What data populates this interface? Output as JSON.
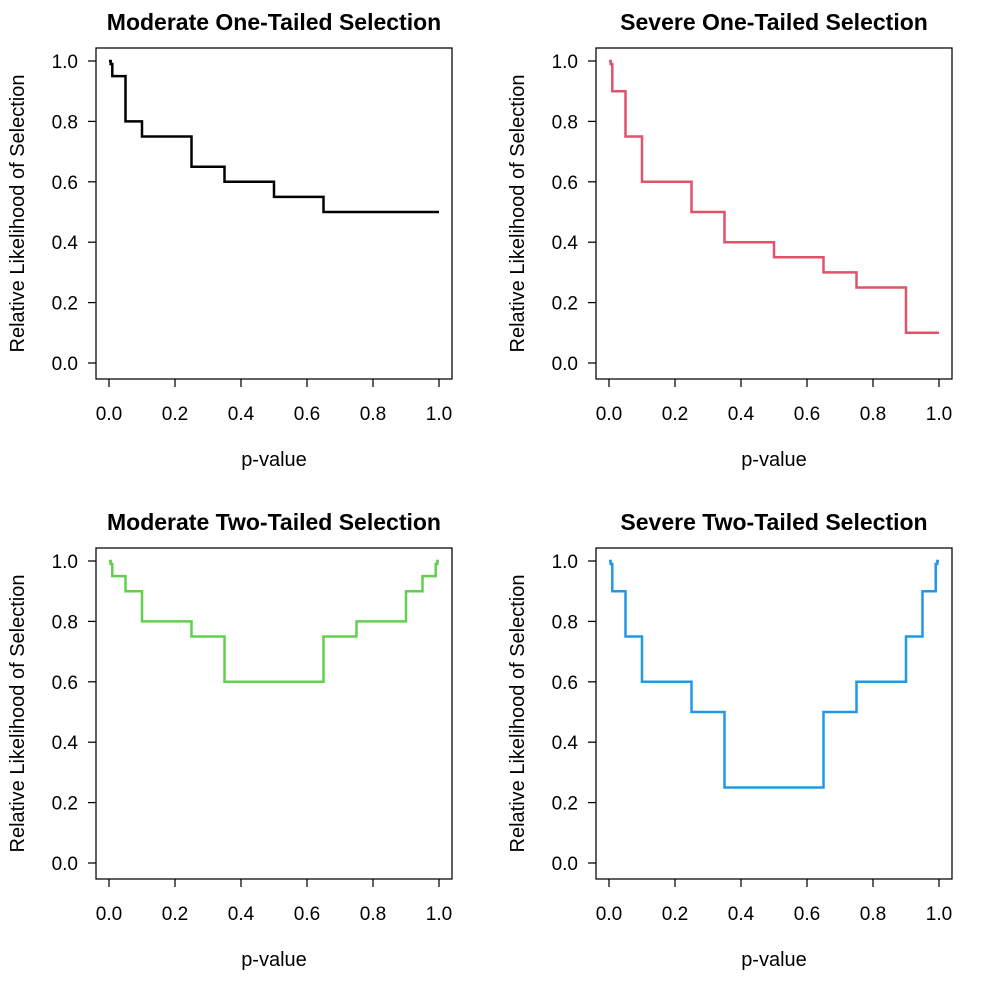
{
  "figure": {
    "background": "#FFFFFF",
    "text_color": "#000000",
    "description": "2x2 grid of step-function selection-weight plots"
  },
  "chart_data": [
    {
      "type": "line",
      "subtype": "step",
      "title": "Moderate One-Tailed Selection",
      "xlabel": "p-value",
      "ylabel": "Relative Likelihood of Selection",
      "xlim": [
        0,
        1
      ],
      "ylim": [
        0,
        1
      ],
      "xticks": [
        0,
        0.2,
        0.4,
        0.6,
        0.8,
        1
      ],
      "yticks": [
        0,
        0.2,
        0.4,
        0.6,
        0.8,
        1
      ],
      "xticklabels": [
        "0.0",
        "0.2",
        "0.4",
        "0.6",
        "0.8",
        "1.0"
      ],
      "yticklabels": [
        "0.0",
        "0.2",
        "0.4",
        "0.6",
        "0.8",
        "1.0"
      ],
      "grid": false,
      "legend": "none",
      "line_color": "#000000",
      "p_breaks": [
        0,
        0.005,
        0.01,
        0.05,
        0.1,
        0.25,
        0.35,
        0.5,
        0.65,
        0.75,
        0.9,
        0.95,
        0.99,
        0.995,
        1
      ],
      "weights": [
        1.0,
        0.99,
        0.95,
        0.8,
        0.75,
        0.65,
        0.6,
        0.55,
        0.5,
        0.5,
        0.5,
        0.5,
        0.5,
        0.5
      ]
    },
    {
      "type": "line",
      "subtype": "step",
      "title": "Severe One-Tailed Selection",
      "xlabel": "p-value",
      "ylabel": "Relative Likelihood of Selection",
      "xlim": [
        0,
        1
      ],
      "ylim": [
        0,
        1
      ],
      "xticks": [
        0,
        0.2,
        0.4,
        0.6,
        0.8,
        1
      ],
      "yticks": [
        0,
        0.2,
        0.4,
        0.6,
        0.8,
        1
      ],
      "xticklabels": [
        "0.0",
        "0.2",
        "0.4",
        "0.6",
        "0.8",
        "1.0"
      ],
      "yticklabels": [
        "0.0",
        "0.2",
        "0.4",
        "0.6",
        "0.8",
        "1.0"
      ],
      "grid": false,
      "legend": "none",
      "line_color": "#DF536B",
      "p_breaks": [
        0,
        0.005,
        0.01,
        0.05,
        0.1,
        0.25,
        0.35,
        0.5,
        0.65,
        0.75,
        0.9,
        0.95,
        0.99,
        0.995,
        1
      ],
      "weights": [
        1.0,
        0.99,
        0.9,
        0.75,
        0.6,
        0.5,
        0.4,
        0.35,
        0.3,
        0.25,
        0.1,
        0.1,
        0.1,
        0.1
      ]
    },
    {
      "type": "line",
      "subtype": "step",
      "title": "Moderate Two-Tailed Selection",
      "xlabel": "p-value",
      "ylabel": "Relative Likelihood of Selection",
      "xlim": [
        0,
        1
      ],
      "ylim": [
        0,
        1
      ],
      "xticks": [
        0,
        0.2,
        0.4,
        0.6,
        0.8,
        1
      ],
      "yticks": [
        0,
        0.2,
        0.4,
        0.6,
        0.8,
        1
      ],
      "xticklabels": [
        "0.0",
        "0.2",
        "0.4",
        "0.6",
        "0.8",
        "1.0"
      ],
      "yticklabels": [
        "0.0",
        "0.2",
        "0.4",
        "0.6",
        "0.8",
        "1.0"
      ],
      "grid": false,
      "legend": "none",
      "line_color": "#61D04F",
      "p_breaks": [
        0,
        0.005,
        0.01,
        0.05,
        0.1,
        0.25,
        0.35,
        0.5,
        0.65,
        0.75,
        0.9,
        0.95,
        0.99,
        0.995,
        1
      ],
      "weights": [
        1.0,
        0.99,
        0.95,
        0.9,
        0.8,
        0.75,
        0.6,
        0.6,
        0.75,
        0.8,
        0.9,
        0.95,
        0.99,
        1.0
      ]
    },
    {
      "type": "line",
      "subtype": "step",
      "title": "Severe Two-Tailed Selection",
      "xlabel": "p-value",
      "ylabel": "Relative Likelihood of Selection",
      "xlim": [
        0,
        1
      ],
      "ylim": [
        0,
        1
      ],
      "xticks": [
        0,
        0.2,
        0.4,
        0.6,
        0.8,
        1
      ],
      "yticks": [
        0,
        0.2,
        0.4,
        0.6,
        0.8,
        1
      ],
      "xticklabels": [
        "0.0",
        "0.2",
        "0.4",
        "0.6",
        "0.8",
        "1.0"
      ],
      "yticklabels": [
        "0.0",
        "0.2",
        "0.4",
        "0.6",
        "0.8",
        "1.0"
      ],
      "grid": false,
      "legend": "none",
      "line_color": "#2297E6",
      "p_breaks": [
        0,
        0.005,
        0.01,
        0.05,
        0.1,
        0.25,
        0.35,
        0.5,
        0.65,
        0.75,
        0.9,
        0.95,
        0.99,
        0.995,
        1
      ],
      "weights": [
        1.0,
        0.99,
        0.9,
        0.75,
        0.6,
        0.5,
        0.25,
        0.25,
        0.5,
        0.6,
        0.75,
        0.9,
        0.99,
        1.0
      ]
    }
  ]
}
